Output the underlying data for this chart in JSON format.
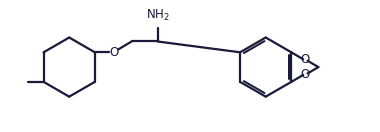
{
  "background_color": "#ffffff",
  "line_color": "#1a1a3a",
  "line_width": 1.6,
  "nh2_font_size": 8.5,
  "o_font_size": 8.5,
  "figsize": [
    3.8,
    1.32
  ],
  "dpi": 100,
  "xlim": [
    0,
    10.5
  ],
  "ylim": [
    0,
    3.5
  ]
}
